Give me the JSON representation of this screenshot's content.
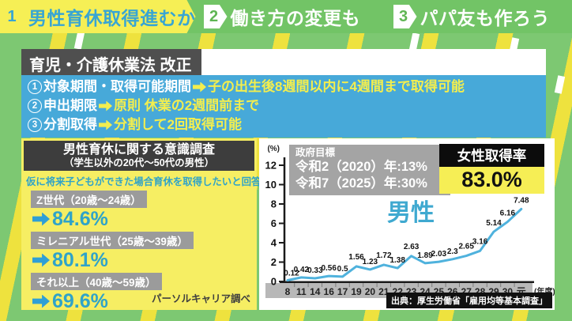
{
  "top_bar": {
    "items": [
      {
        "number": "1",
        "label": "男性育休取得進むか",
        "active": true
      },
      {
        "number": "2",
        "label": "働き方の変更も",
        "active": false
      },
      {
        "number": "3",
        "label": "パパ友も作ろう",
        "active": false
      }
    ]
  },
  "law_box": {
    "title": "育児・介護休業法 改正",
    "items": [
      {
        "number": "1",
        "label": "対象期間・取得可能期間",
        "value": "子の出生後8週間以内に4週間まで取得可能"
      },
      {
        "number": "2",
        "label": "申出期限",
        "value": "原則 休業の2週間前まで"
      },
      {
        "number": "3",
        "label": "分割取得",
        "value": "分割して2回取得可能"
      }
    ]
  },
  "survey": {
    "title": "男性育休に関する意識調査",
    "subtitle": "（学生以外の20代〜50代の男性）",
    "question": "仮に将来子どもができた場合育休を取得したいと回答",
    "groups": [
      {
        "label": "Z世代（20歳〜24歳）",
        "value": "84.6%"
      },
      {
        "label": "ミレニアル世代（25歳〜39歳）",
        "value": "80.1%"
      },
      {
        "label": "それ以上（40歳〜59歳）",
        "value": "69.6%"
      }
    ],
    "source": "パーソルキャリア調べ"
  },
  "gov_target": {
    "title": "政府目標",
    "line1": "令和2（2020）年:13%",
    "line2": "令和7（2025）年:30%"
  },
  "female_rate": {
    "title": "女性取得率",
    "value": "83.0%"
  },
  "chart_data": {
    "type": "line",
    "x": [
      "8",
      "11",
      "14",
      "16",
      "17",
      "19",
      "20",
      "21",
      "22",
      "23",
      "24",
      "25",
      "26",
      "27",
      "28",
      "29",
      "30",
      "元"
    ],
    "series": [
      {
        "name": "男性",
        "values": [
          0.12,
          0.42,
          0.33,
          0.56,
          0.5,
          1.56,
          1.23,
          1.72,
          1.38,
          2.63,
          1.89,
          2.03,
          2.3,
          2.65,
          3.16,
          5.14,
          6.16,
          7.48
        ]
      }
    ],
    "ylabel": "(%)",
    "xlabel_suffix": "(年度)",
    "ylim": [
      0,
      12
    ],
    "yticks": [
      0,
      2,
      4,
      6,
      8,
      10,
      12
    ],
    "grid": false,
    "legend_position": "none",
    "line_color": "#4fb2dd",
    "label_color": "#3fa9d0",
    "source": "出典：厚生労働省「雇用均等基本調査」"
  },
  "colors": {
    "page_green": "#7dc872",
    "stripe_yellow": "#eee23e",
    "bar_green": "#72c466",
    "tab_yellow": "#f6ef55",
    "tab_blue_text": "#38a5d3",
    "law_blue": "#47a9d9",
    "highlight_yellow": "#f3ee4e",
    "teal_text": "#2fa3c9",
    "gray_box": "#9b9b9b",
    "dark_header": "#3d3d3d",
    "gov_gray": "#a4a4a4",
    "female_black": "#0c0c0c",
    "line_blue": "#4fb2dd"
  }
}
